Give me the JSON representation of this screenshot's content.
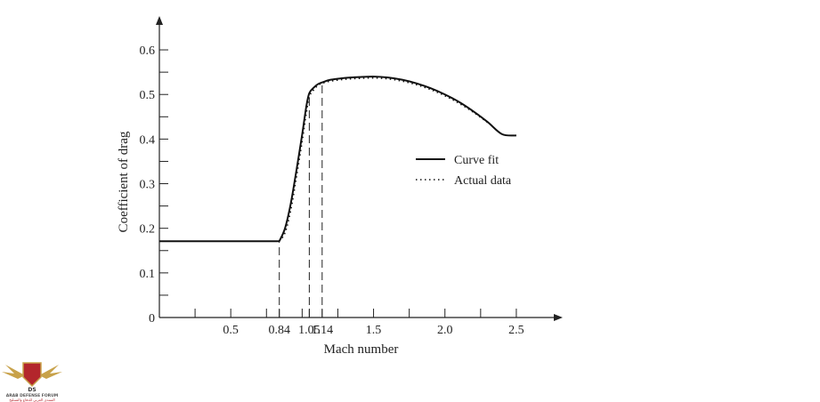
{
  "chart_data": {
    "type": "line",
    "title": "",
    "xlabel": "Mach number",
    "ylabel": "Coefficient of drag",
    "xlim": [
      0,
      2.7
    ],
    "ylim": [
      0,
      0.64
    ],
    "x_ticks": [
      {
        "value": 0.5,
        "label": "0.5"
      },
      {
        "value": 0.84,
        "label": "0.84"
      },
      {
        "value": 1.05,
        "label": "1.05"
      },
      {
        "value": 1.14,
        "label": "1.14"
      },
      {
        "value": 1.5,
        "label": "1.5"
      },
      {
        "value": 2.0,
        "label": "2.0"
      },
      {
        "value": 2.5,
        "label": "2.5"
      }
    ],
    "x_minor_ticks": [
      0.25,
      0.75,
      1.0,
      1.25,
      1.75,
      2.25
    ],
    "y_ticks": [
      {
        "value": 0,
        "label": "0"
      },
      {
        "value": 0.1,
        "label": "0.1"
      },
      {
        "value": 0.2,
        "label": "0.2"
      },
      {
        "value": 0.3,
        "label": "0.3"
      },
      {
        "value": 0.4,
        "label": "0.4"
      },
      {
        "value": 0.5,
        "label": "0.5"
      },
      {
        "value": 0.6,
        "label": "0.6"
      }
    ],
    "y_minor_ticks": [
      0.05,
      0.15,
      0.25,
      0.35,
      0.45,
      0.55
    ],
    "reference_lines_x": [
      0.84,
      1.05,
      1.14
    ],
    "legend_position": "right",
    "series": [
      {
        "name": "Curve fit",
        "style": "solid",
        "x": [
          0,
          0.84,
          0.88,
          0.92,
          0.96,
          1.0,
          1.03,
          1.05,
          1.08,
          1.11,
          1.14,
          1.2,
          1.3,
          1.4,
          1.5,
          1.6,
          1.7,
          1.8,
          1.9,
          2.0,
          2.1,
          2.2,
          2.3,
          2.4,
          2.5
        ],
        "y": [
          0.171,
          0.171,
          0.2,
          0.255,
          0.33,
          0.41,
          0.475,
          0.503,
          0.515,
          0.523,
          0.527,
          0.533,
          0.537,
          0.539,
          0.54,
          0.538,
          0.533,
          0.525,
          0.514,
          0.5,
          0.483,
          0.462,
          0.438,
          0.411,
          0.408
        ]
      },
      {
        "name": "Actual data",
        "style": "dotted",
        "x": [
          0.84,
          0.88,
          0.92,
          0.96,
          1.0,
          1.03,
          1.05,
          1.08,
          1.11,
          1.14,
          1.2,
          1.3,
          1.4,
          1.5,
          1.6,
          1.7,
          1.8,
          1.9,
          2.0,
          2.1,
          2.2,
          2.3
        ],
        "y": [
          0.171,
          0.19,
          0.24,
          0.315,
          0.395,
          0.46,
          0.495,
          0.51,
          0.52,
          0.525,
          0.53,
          0.534,
          0.536,
          0.537,
          0.535,
          0.53,
          0.522,
          0.511,
          0.497,
          0.48,
          0.46,
          0.437
        ]
      }
    ]
  },
  "watermark": {
    "label": "ARAB DEFENSE FORUM",
    "sub_label": "المنتدى العربي للدفاع والتسليح",
    "badge": "DS",
    "colors": {
      "gold": "#c8a24a",
      "red": "#b3262c"
    }
  },
  "colors": {
    "line": "#111111",
    "axis": "#222222",
    "background": "#ffffff"
  }
}
